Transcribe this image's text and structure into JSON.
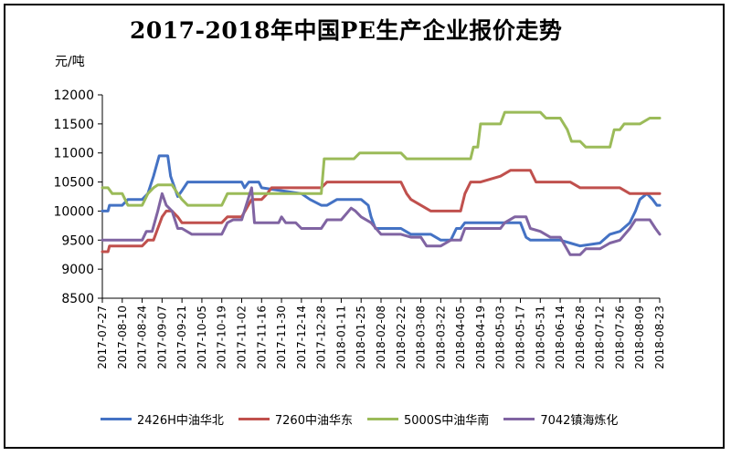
{
  "chart_data": {
    "type": "line",
    "title": "2017-2018年中国PE生产企业报价走势",
    "ylabel": "元/吨",
    "xlabel": "",
    "ylim": [
      8500,
      12000
    ],
    "yticks": [
      8500,
      9000,
      9500,
      10000,
      10500,
      11000,
      11500,
      12000
    ],
    "x_tick_labels": [
      "2017-07-27",
      "2017-08-10",
      "2017-08-24",
      "2017-09-07",
      "2017-09-21",
      "2017-10-05",
      "2017-10-19",
      "2017-11-02",
      "2017-11-16",
      "2017-11-30",
      "2017-12-14",
      "2017-12-28",
      "2018-01-11",
      "2018-01-25",
      "2018-02-08",
      "2018-02-22",
      "2018-03-08",
      "2018-03-22",
      "2018-04-05",
      "2018-04-19",
      "2018-05-03",
      "2018-05-17",
      "2018-05-31",
      "2018-06-14",
      "2018-06-28",
      "2018-07-12",
      "2018-07-26",
      "2018-08-09",
      "2018-08-23"
    ],
    "grid": false,
    "legend_position": "bottom",
    "series": [
      {
        "name": "2426H中油华北",
        "color": "#4472C4",
        "points": [
          [
            "2017-07-27",
            10000
          ],
          [
            "2017-07-31",
            10000
          ],
          [
            "2017-08-01",
            10100
          ],
          [
            "2017-08-10",
            10100
          ],
          [
            "2017-08-14",
            10200
          ],
          [
            "2017-08-24",
            10200
          ],
          [
            "2017-08-28",
            10300
          ],
          [
            "2017-09-01",
            10600
          ],
          [
            "2017-09-05",
            10950
          ],
          [
            "2017-09-11",
            10950
          ],
          [
            "2017-09-13",
            10600
          ],
          [
            "2017-09-18",
            10250
          ],
          [
            "2017-09-21",
            10350
          ],
          [
            "2017-09-25",
            10500
          ],
          [
            "2017-10-05",
            10500
          ],
          [
            "2017-11-02",
            10500
          ],
          [
            "2017-11-04",
            10400
          ],
          [
            "2017-11-07",
            10500
          ],
          [
            "2017-11-14",
            10500
          ],
          [
            "2017-11-16",
            10400
          ],
          [
            "2017-12-14",
            10300
          ],
          [
            "2017-12-20",
            10200
          ],
          [
            "2017-12-28",
            10100
          ],
          [
            "2018-01-01",
            10100
          ],
          [
            "2018-01-08",
            10200
          ],
          [
            "2018-01-25",
            10200
          ],
          [
            "2018-01-30",
            10100
          ],
          [
            "2018-02-01",
            9900
          ],
          [
            "2018-02-04",
            9700
          ],
          [
            "2018-02-22",
            9700
          ],
          [
            "2018-03-01",
            9600
          ],
          [
            "2018-03-15",
            9600
          ],
          [
            "2018-03-22",
            9500
          ],
          [
            "2018-03-29",
            9500
          ],
          [
            "2018-04-02",
            9700
          ],
          [
            "2018-04-05",
            9700
          ],
          [
            "2018-04-08",
            9800
          ],
          [
            "2018-04-19",
            9800
          ],
          [
            "2018-05-03",
            9800
          ],
          [
            "2018-05-10",
            9800
          ],
          [
            "2018-05-17",
            9800
          ],
          [
            "2018-05-21",
            9550
          ],
          [
            "2018-05-24",
            9500
          ],
          [
            "2018-06-14",
            9500
          ],
          [
            "2018-06-21",
            9450
          ],
          [
            "2018-06-28",
            9400
          ],
          [
            "2018-07-12",
            9450
          ],
          [
            "2018-07-19",
            9600
          ],
          [
            "2018-07-26",
            9650
          ],
          [
            "2018-08-02",
            9800
          ],
          [
            "2018-08-06",
            10000
          ],
          [
            "2018-08-09",
            10200
          ],
          [
            "2018-08-14",
            10300
          ],
          [
            "2018-08-18",
            10200
          ],
          [
            "2018-08-21",
            10100
          ],
          [
            "2018-08-23",
            10100
          ]
        ]
      },
      {
        "name": "7260中油华东",
        "color": "#C0504D",
        "points": [
          [
            "2017-07-27",
            9300
          ],
          [
            "2017-07-31",
            9300
          ],
          [
            "2017-08-01",
            9400
          ],
          [
            "2017-08-24",
            9400
          ],
          [
            "2017-08-28",
            9500
          ],
          [
            "2017-09-01",
            9500
          ],
          [
            "2017-09-04",
            9700
          ],
          [
            "2017-09-07",
            9900
          ],
          [
            "2017-09-10",
            10000
          ],
          [
            "2017-09-14",
            10000
          ],
          [
            "2017-09-18",
            9900
          ],
          [
            "2017-09-21",
            9800
          ],
          [
            "2017-10-19",
            9800
          ],
          [
            "2017-10-23",
            9900
          ],
          [
            "2017-11-02",
            9900
          ],
          [
            "2017-11-09",
            10200
          ],
          [
            "2017-11-16",
            10200
          ],
          [
            "2017-11-20",
            10300
          ],
          [
            "2017-11-23",
            10400
          ],
          [
            "2017-12-28",
            10400
          ],
          [
            "2018-01-01",
            10500
          ],
          [
            "2018-02-08",
            10500
          ],
          [
            "2018-02-22",
            10500
          ],
          [
            "2018-02-26",
            10300
          ],
          [
            "2018-03-01",
            10200
          ],
          [
            "2018-03-08",
            10100
          ],
          [
            "2018-03-15",
            10000
          ],
          [
            "2018-03-22",
            10000
          ],
          [
            "2018-04-05",
            10000
          ],
          [
            "2018-04-08",
            10300
          ],
          [
            "2018-04-12",
            10500
          ],
          [
            "2018-04-19",
            10500
          ],
          [
            "2018-05-03",
            10600
          ],
          [
            "2018-05-10",
            10700
          ],
          [
            "2018-05-17",
            10700
          ],
          [
            "2018-05-24",
            10700
          ],
          [
            "2018-05-28",
            10500
          ],
          [
            "2018-06-14",
            10500
          ],
          [
            "2018-06-21",
            10500
          ],
          [
            "2018-06-28",
            10400
          ],
          [
            "2018-07-12",
            10400
          ],
          [
            "2018-07-26",
            10400
          ],
          [
            "2018-08-02",
            10300
          ],
          [
            "2018-08-09",
            10300
          ],
          [
            "2018-08-23",
            10300
          ]
        ]
      },
      {
        "name": "5000S中油华南",
        "color": "#9BBB59",
        "points": [
          [
            "2017-07-27",
            10400
          ],
          [
            "2017-07-31",
            10400
          ],
          [
            "2017-08-03",
            10300
          ],
          [
            "2017-08-10",
            10300
          ],
          [
            "2017-08-14",
            10100
          ],
          [
            "2017-08-24",
            10100
          ],
          [
            "2017-08-28",
            10300
          ],
          [
            "2017-09-01",
            10400
          ],
          [
            "2017-09-04",
            10450
          ],
          [
            "2017-09-14",
            10450
          ],
          [
            "2017-09-18",
            10300
          ],
          [
            "2017-09-21",
            10200
          ],
          [
            "2017-09-25",
            10100
          ],
          [
            "2017-10-19",
            10100
          ],
          [
            "2017-10-23",
            10300
          ],
          [
            "2017-11-02",
            10300
          ],
          [
            "2017-12-28",
            10300
          ],
          [
            "2017-12-30",
            10900
          ],
          [
            "2018-01-11",
            10900
          ],
          [
            "2018-01-20",
            10900
          ],
          [
            "2018-01-24",
            11000
          ],
          [
            "2018-02-08",
            11000
          ],
          [
            "2018-02-22",
            11000
          ],
          [
            "2018-02-26",
            10900
          ],
          [
            "2018-03-08",
            10900
          ],
          [
            "2018-04-05",
            10900
          ],
          [
            "2018-04-12",
            10900
          ],
          [
            "2018-04-14",
            11100
          ],
          [
            "2018-04-17",
            11100
          ],
          [
            "2018-04-19",
            11500
          ],
          [
            "2018-05-03",
            11500
          ],
          [
            "2018-05-06",
            11700
          ],
          [
            "2018-05-31",
            11700
          ],
          [
            "2018-06-04",
            11600
          ],
          [
            "2018-06-14",
            11600
          ],
          [
            "2018-06-19",
            11400
          ],
          [
            "2018-06-22",
            11200
          ],
          [
            "2018-06-28",
            11200
          ],
          [
            "2018-07-02",
            11100
          ],
          [
            "2018-07-12",
            11100
          ],
          [
            "2018-07-19",
            11100
          ],
          [
            "2018-07-22",
            11400
          ],
          [
            "2018-07-26",
            11400
          ],
          [
            "2018-07-29",
            11500
          ],
          [
            "2018-08-09",
            11500
          ],
          [
            "2018-08-16",
            11600
          ],
          [
            "2018-08-23",
            11600
          ]
        ]
      },
      {
        "name": "7042镇海炼化",
        "color": "#8064A2",
        "points": [
          [
            "2017-07-27",
            9500
          ],
          [
            "2017-08-24",
            9500
          ],
          [
            "2017-08-27",
            9650
          ],
          [
            "2017-08-31",
            9650
          ],
          [
            "2017-09-04",
            10000
          ],
          [
            "2017-09-07",
            10300
          ],
          [
            "2017-09-10",
            10100
          ],
          [
            "2017-09-14",
            10000
          ],
          [
            "2017-09-18",
            9700
          ],
          [
            "2017-09-21",
            9700
          ],
          [
            "2017-09-28",
            9600
          ],
          [
            "2017-10-19",
            9600
          ],
          [
            "2017-10-23",
            9800
          ],
          [
            "2017-10-27",
            9850
          ],
          [
            "2017-11-02",
            9850
          ],
          [
            "2017-11-09",
            10400
          ],
          [
            "2017-11-11",
            9800
          ],
          [
            "2017-11-28",
            9800
          ],
          [
            "2017-11-30",
            9900
          ],
          [
            "2017-12-03",
            9800
          ],
          [
            "2017-12-10",
            9800
          ],
          [
            "2017-12-14",
            9700
          ],
          [
            "2017-12-28",
            9700
          ],
          [
            "2018-01-01",
            9850
          ],
          [
            "2018-01-11",
            9850
          ],
          [
            "2018-01-18",
            10050
          ],
          [
            "2018-01-21",
            10000
          ],
          [
            "2018-01-25",
            9900
          ],
          [
            "2018-02-01",
            9800
          ],
          [
            "2018-02-08",
            9600
          ],
          [
            "2018-02-22",
            9600
          ],
          [
            "2018-03-01",
            9550
          ],
          [
            "2018-03-08",
            9550
          ],
          [
            "2018-03-12",
            9400
          ],
          [
            "2018-03-22",
            9400
          ],
          [
            "2018-03-29",
            9500
          ],
          [
            "2018-04-05",
            9500
          ],
          [
            "2018-04-08",
            9700
          ],
          [
            "2018-04-19",
            9700
          ],
          [
            "2018-05-03",
            9700
          ],
          [
            "2018-05-06",
            9800
          ],
          [
            "2018-05-13",
            9900
          ],
          [
            "2018-05-21",
            9900
          ],
          [
            "2018-05-24",
            9700
          ],
          [
            "2018-05-31",
            9650
          ],
          [
            "2018-06-07",
            9550
          ],
          [
            "2018-06-14",
            9550
          ],
          [
            "2018-06-21",
            9250
          ],
          [
            "2018-06-28",
            9250
          ],
          [
            "2018-07-02",
            9350
          ],
          [
            "2018-07-12",
            9350
          ],
          [
            "2018-07-19",
            9450
          ],
          [
            "2018-07-26",
            9500
          ],
          [
            "2018-08-02",
            9700
          ],
          [
            "2018-08-06",
            9850
          ],
          [
            "2018-08-16",
            9850
          ],
          [
            "2018-08-20",
            9700
          ],
          [
            "2018-08-23",
            9600
          ]
        ]
      }
    ]
  }
}
